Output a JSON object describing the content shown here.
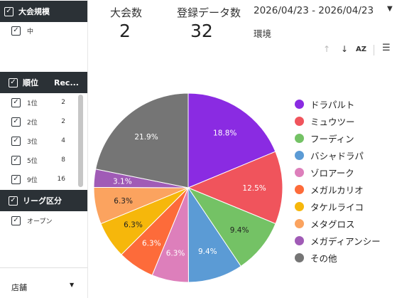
{
  "sidebar": {
    "size_filter": {
      "title": "大会規模",
      "items": [
        {
          "label": "中",
          "checked": true
        }
      ]
    },
    "rank_filter": {
      "title": "順位",
      "count_header": "Rec...",
      "items": [
        {
          "label": "1位",
          "count": "2",
          "checked": true
        },
        {
          "label": "2位",
          "count": "2",
          "checked": true
        },
        {
          "label": "3位",
          "count": "4",
          "checked": true
        },
        {
          "label": "5位",
          "count": "8",
          "checked": true
        },
        {
          "label": "9位",
          "count": "16",
          "checked": true
        }
      ]
    },
    "league_filter": {
      "title": "リーグ区分",
      "items": [
        {
          "label": "オープン",
          "checked": true
        }
      ]
    },
    "store_dropdown": {
      "label": "店舗"
    }
  },
  "kpis": [
    {
      "label": "大会数",
      "value": "2"
    },
    {
      "label": "登録データ数",
      "value": "32"
    }
  ],
  "date_range": "2026/04/23 - 2026/04/23",
  "env_label": "環境",
  "toolbar": {
    "sort_asc_icon": "arrow-up-icon",
    "sort_desc_icon": "arrow-down-icon",
    "sort_az_icon": "sort-az-icon",
    "filter_icon": "filter-lines-icon"
  },
  "chart_data": {
    "type": "pie",
    "slices": [
      {
        "label": "ドラパルト",
        "value": 18.8,
        "display": "18.8%",
        "color": "#8a2be2"
      },
      {
        "label": "ミュウツー",
        "value": 12.5,
        "display": "12.5%",
        "color": "#f0545c"
      },
      {
        "label": "フーディン",
        "value": 9.4,
        "display": "9.4%",
        "color": "#74c265"
      },
      {
        "label": "バシャドラパ",
        "value": 9.4,
        "display": "9.4%",
        "color": "#5b9bd5"
      },
      {
        "label": "ゾロアーク",
        "value": 6.3,
        "display": "6.3%",
        "color": "#dd7fbb"
      },
      {
        "label": "メガルカリオ",
        "value": 6.3,
        "display": "6.3%",
        "color": "#fd6b3a"
      },
      {
        "label": "タケルライコ",
        "value": 6.3,
        "display": "6.3%",
        "color": "#f6b70b"
      },
      {
        "label": "メタグロス",
        "value": 6.3,
        "display": "6.3%",
        "color": "#fba35f"
      },
      {
        "label": "メガディアンシー",
        "value": 3.1,
        "display": "3.1%",
        "color": "#a05bb6"
      },
      {
        "label": "その他",
        "value": 21.9,
        "display": "21.9%",
        "color": "#757575"
      }
    ],
    "legend_position": "right"
  }
}
